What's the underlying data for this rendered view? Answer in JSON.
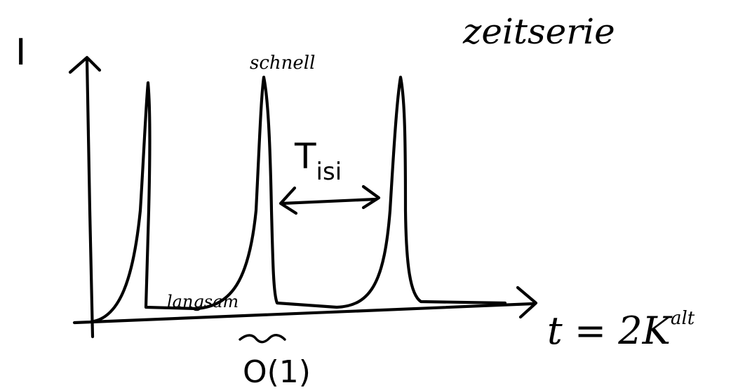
{
  "title": "zeitserie",
  "y_axis_label": "I",
  "x_axis_label": "t = 2K t^alt",
  "x_axis_label_parts": {
    "main": "t = 2K",
    "sup": "alt"
  },
  "annotations": {
    "fast": "schnell",
    "slow": "langsam",
    "interval": {
      "base": "T",
      "sub": "isi"
    },
    "order": "O(1)"
  },
  "chart_data": {
    "type": "line",
    "title": "zeitserie",
    "xlabel": "t = 2K t^alt",
    "ylabel": "I",
    "series": [
      {
        "values_description": "",
        "peaks": 3
      }
    ],
    "annotations": [
      "schnell",
      "langsam",
      "T_isi",
      "O(1)"
    ]
  }
}
